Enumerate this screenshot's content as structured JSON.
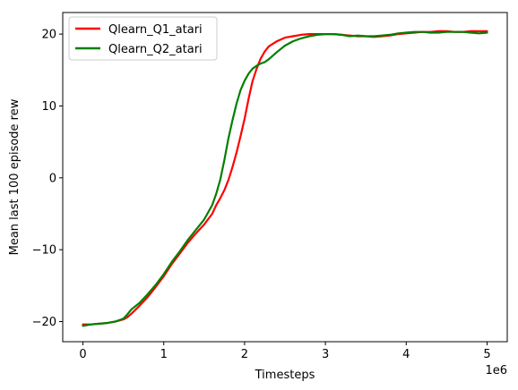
{
  "chart_data": {
    "type": "line",
    "xlabel": "Timesteps",
    "ylabel": "Mean last 100 episode rew",
    "x_offset_text": "1e6",
    "xlim": [
      -0.25,
      5.25
    ],
    "ylim": [
      -22.8,
      23.0
    ],
    "x_ticks": [
      0,
      1,
      2,
      3,
      4,
      5
    ],
    "x_tick_labels": [
      "0",
      "1",
      "2",
      "3",
      "4",
      "5"
    ],
    "y_ticks": [
      -20,
      -10,
      0,
      10,
      20
    ],
    "y_tick_labels": [
      "−20",
      "−10",
      "0",
      "10",
      "20"
    ],
    "legend_position": "upper-left",
    "series": [
      {
        "name": "Qlearn_Q1_atari",
        "color": "#ff0000",
        "x": [
          0.0,
          0.1,
          0.2,
          0.3,
          0.4,
          0.5,
          0.55,
          0.6,
          0.7,
          0.8,
          0.9,
          1.0,
          1.1,
          1.2,
          1.3,
          1.4,
          1.5,
          1.6,
          1.65,
          1.7,
          1.75,
          1.8,
          1.85,
          1.9,
          1.95,
          2.0,
          2.05,
          2.1,
          2.15,
          2.2,
          2.25,
          2.3,
          2.4,
          2.5,
          2.6,
          2.7,
          2.8,
          2.9,
          3.0,
          3.1,
          3.2,
          3.3,
          3.4,
          3.5,
          3.6,
          3.7,
          3.8,
          3.9,
          4.0,
          4.1,
          4.2,
          4.3,
          4.4,
          4.5,
          4.6,
          4.7,
          4.8,
          4.9,
          5.0
        ],
        "y": [
          -20.4,
          -20.4,
          -20.3,
          -20.2,
          -20.0,
          -19.7,
          -19.4,
          -18.9,
          -17.8,
          -16.6,
          -15.2,
          -13.7,
          -12.0,
          -10.5,
          -9.0,
          -7.7,
          -6.5,
          -5.0,
          -3.8,
          -2.8,
          -1.7,
          -0.3,
          1.5,
          3.5,
          5.8,
          8.2,
          11.0,
          13.5,
          15.2,
          16.6,
          17.6,
          18.3,
          19.0,
          19.5,
          19.7,
          19.9,
          20.0,
          20.0,
          20.0,
          20.0,
          19.9,
          19.8,
          19.7,
          19.7,
          19.6,
          19.7,
          19.8,
          20.0,
          20.1,
          20.2,
          20.3,
          20.3,
          20.4,
          20.4,
          20.3,
          20.3,
          20.4,
          20.4,
          20.4
        ]
      },
      {
        "name": "Qlearn_Q2_atari",
        "color": "#008000",
        "x": [
          0.0,
          0.1,
          0.2,
          0.3,
          0.4,
          0.5,
          0.55,
          0.6,
          0.7,
          0.8,
          0.9,
          1.0,
          1.1,
          1.2,
          1.3,
          1.4,
          1.5,
          1.6,
          1.65,
          1.7,
          1.75,
          1.8,
          1.85,
          1.9,
          1.95,
          2.0,
          2.05,
          2.1,
          2.15,
          2.2,
          2.25,
          2.3,
          2.4,
          2.5,
          2.6,
          2.7,
          2.8,
          2.9,
          3.0,
          3.1,
          3.2,
          3.3,
          3.4,
          3.5,
          3.6,
          3.7,
          3.8,
          3.9,
          4.0,
          4.1,
          4.2,
          4.3,
          4.4,
          4.5,
          4.6,
          4.7,
          4.8,
          4.9,
          5.0
        ],
        "y": [
          -20.6,
          -20.4,
          -20.3,
          -20.2,
          -20.0,
          -19.6,
          -19.0,
          -18.3,
          -17.4,
          -16.2,
          -14.9,
          -13.4,
          -11.7,
          -10.2,
          -8.6,
          -7.2,
          -5.8,
          -3.8,
          -2.2,
          -0.2,
          2.5,
          5.5,
          8.0,
          10.3,
          12.2,
          13.5,
          14.5,
          15.2,
          15.6,
          15.9,
          16.1,
          16.5,
          17.5,
          18.4,
          19.0,
          19.4,
          19.7,
          19.9,
          20.0,
          20.0,
          19.9,
          19.7,
          19.8,
          19.7,
          19.7,
          19.8,
          19.9,
          20.1,
          20.2,
          20.3,
          20.3,
          20.2,
          20.2,
          20.3,
          20.3,
          20.3,
          20.2,
          20.1,
          20.2
        ]
      }
    ]
  }
}
